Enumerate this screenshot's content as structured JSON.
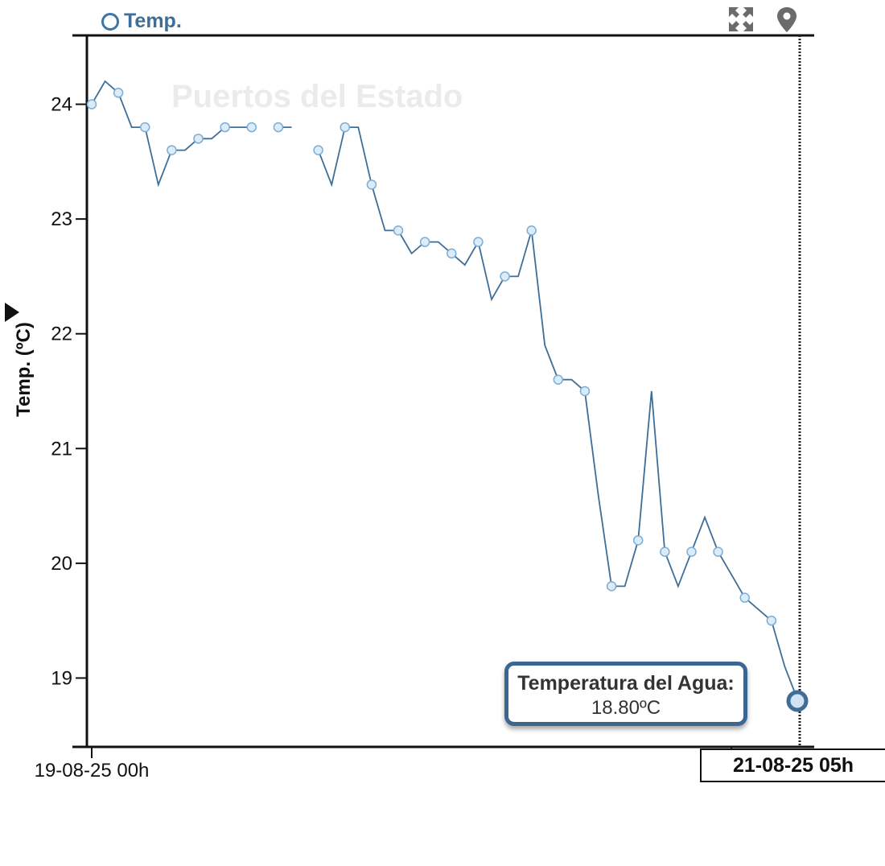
{
  "legend": {
    "label": "Temp."
  },
  "icons": {
    "expand": "expand-icon",
    "location": "map-pin-icon"
  },
  "watermark": "Puertos del Estado",
  "colors": {
    "series": "#3e6e98",
    "marker_fill": "#dcebf8",
    "marker_stroke": "#7aaed6",
    "axis": "#111111",
    "tooltip_border": "#3a6691"
  },
  "tooltip": {
    "title": "Temperatura del Agua:",
    "value": "18.80ºC"
  },
  "cursor_label": "21-08-25 05h",
  "chart_data": {
    "type": "line",
    "ylabel": "Temp. (ºC)",
    "ylim": [
      18.4,
      24.6
    ],
    "yticks": [
      19,
      20,
      21,
      22,
      23,
      24
    ],
    "xlim": [
      "2025-08-19 00:00",
      "2025-08-21 05:00"
    ],
    "xtick_labels": [
      {
        "x": "2025-08-19 00:00",
        "label": "19-08-25 00h"
      },
      {
        "x": "2025-08-21 00:00",
        "label": "21-"
      }
    ],
    "legend_position": "top-left",
    "grid": false,
    "series": [
      {
        "name": "Temp.",
        "points": [
          {
            "x": "2025-08-19 00:00",
            "y": 24.0
          },
          {
            "x": "2025-08-19 01:00",
            "y": 24.2
          },
          {
            "x": "2025-08-19 02:00",
            "y": 24.1
          },
          {
            "x": "2025-08-19 03:00",
            "y": 23.8
          },
          {
            "x": "2025-08-19 04:00",
            "y": 23.8
          },
          {
            "x": "2025-08-19 05:00",
            "y": 23.3
          },
          {
            "x": "2025-08-19 06:00",
            "y": 23.6
          },
          {
            "x": "2025-08-19 07:00",
            "y": 23.6
          },
          {
            "x": "2025-08-19 08:00",
            "y": 23.7
          },
          {
            "x": "2025-08-19 09:00",
            "y": 23.7
          },
          {
            "x": "2025-08-19 10:00",
            "y": 23.8
          },
          {
            "x": "2025-08-19 11:00",
            "y": 23.8
          },
          {
            "x": "2025-08-19 12:00",
            "y": 23.8
          },
          {
            "x": "2025-08-19 13:00",
            "y": null
          },
          {
            "x": "2025-08-19 14:00",
            "y": 23.8
          },
          {
            "x": "2025-08-19 15:00",
            "y": 23.8
          },
          {
            "x": "2025-08-19 16:00",
            "y": null
          },
          {
            "x": "2025-08-19 17:00",
            "y": 23.6
          },
          {
            "x": "2025-08-19 18:00",
            "y": 23.3
          },
          {
            "x": "2025-08-19 19:00",
            "y": 23.8
          },
          {
            "x": "2025-08-19 20:00",
            "y": 23.8
          },
          {
            "x": "2025-08-19 21:00",
            "y": 23.3
          },
          {
            "x": "2025-08-19 22:00",
            "y": 22.9
          },
          {
            "x": "2025-08-19 23:00",
            "y": 22.9
          },
          {
            "x": "2025-08-20 00:00",
            "y": 22.7
          },
          {
            "x": "2025-08-20 01:00",
            "y": 22.8
          },
          {
            "x": "2025-08-20 02:00",
            "y": 22.8
          },
          {
            "x": "2025-08-20 03:00",
            "y": 22.7
          },
          {
            "x": "2025-08-20 04:00",
            "y": 22.6
          },
          {
            "x": "2025-08-20 05:00",
            "y": 22.8
          },
          {
            "x": "2025-08-20 06:00",
            "y": 22.3
          },
          {
            "x": "2025-08-20 07:00",
            "y": 22.5
          },
          {
            "x": "2025-08-20 08:00",
            "y": 22.5
          },
          {
            "x": "2025-08-20 09:00",
            "y": 22.9
          },
          {
            "x": "2025-08-20 10:00",
            "y": 21.9
          },
          {
            "x": "2025-08-20 11:00",
            "y": 21.6
          },
          {
            "x": "2025-08-20 12:00",
            "y": 21.6
          },
          {
            "x": "2025-08-20 13:00",
            "y": 21.5
          },
          {
            "x": "2025-08-20 14:00",
            "y": 20.6
          },
          {
            "x": "2025-08-20 15:00",
            "y": 19.8
          },
          {
            "x": "2025-08-20 16:00",
            "y": 19.8
          },
          {
            "x": "2025-08-20 17:00",
            "y": 20.2
          },
          {
            "x": "2025-08-20 18:00",
            "y": 21.5
          },
          {
            "x": "2025-08-20 19:00",
            "y": 20.1
          },
          {
            "x": "2025-08-20 20:00",
            "y": 19.8
          },
          {
            "x": "2025-08-20 21:00",
            "y": 20.1
          },
          {
            "x": "2025-08-20 22:00",
            "y": 20.4
          },
          {
            "x": "2025-08-20 23:00",
            "y": 20.1
          },
          {
            "x": "2025-08-21 00:00",
            "y": 19.9
          },
          {
            "x": "2025-08-21 01:00",
            "y": 19.7
          },
          {
            "x": "2025-08-21 02:00",
            "y": 19.6
          },
          {
            "x": "2025-08-21 03:00",
            "y": 19.5
          },
          {
            "x": "2025-08-21 04:00",
            "y": 19.1
          },
          {
            "x": "2025-08-21 05:00",
            "y": 18.8
          }
        ],
        "markers": [
          "2025-08-19 00:00",
          "2025-08-19 02:00",
          "2025-08-19 04:00",
          "2025-08-19 06:00",
          "2025-08-19 08:00",
          "2025-08-19 10:00",
          "2025-08-19 12:00",
          "2025-08-19 14:00",
          "2025-08-19 17:00",
          "2025-08-19 19:00",
          "2025-08-19 21:00",
          "2025-08-19 23:00",
          "2025-08-20 01:00",
          "2025-08-20 03:00",
          "2025-08-20 05:00",
          "2025-08-20 07:00",
          "2025-08-20 09:00",
          "2025-08-20 11:00",
          "2025-08-20 13:00",
          "2025-08-20 15:00",
          "2025-08-20 17:00",
          "2025-08-20 19:00",
          "2025-08-20 21:00",
          "2025-08-20 23:00",
          "2025-08-21 01:00",
          "2025-08-21 03:00"
        ],
        "highlight": {
          "x": "2025-08-21 05:00",
          "y": 18.8
        }
      }
    ]
  }
}
